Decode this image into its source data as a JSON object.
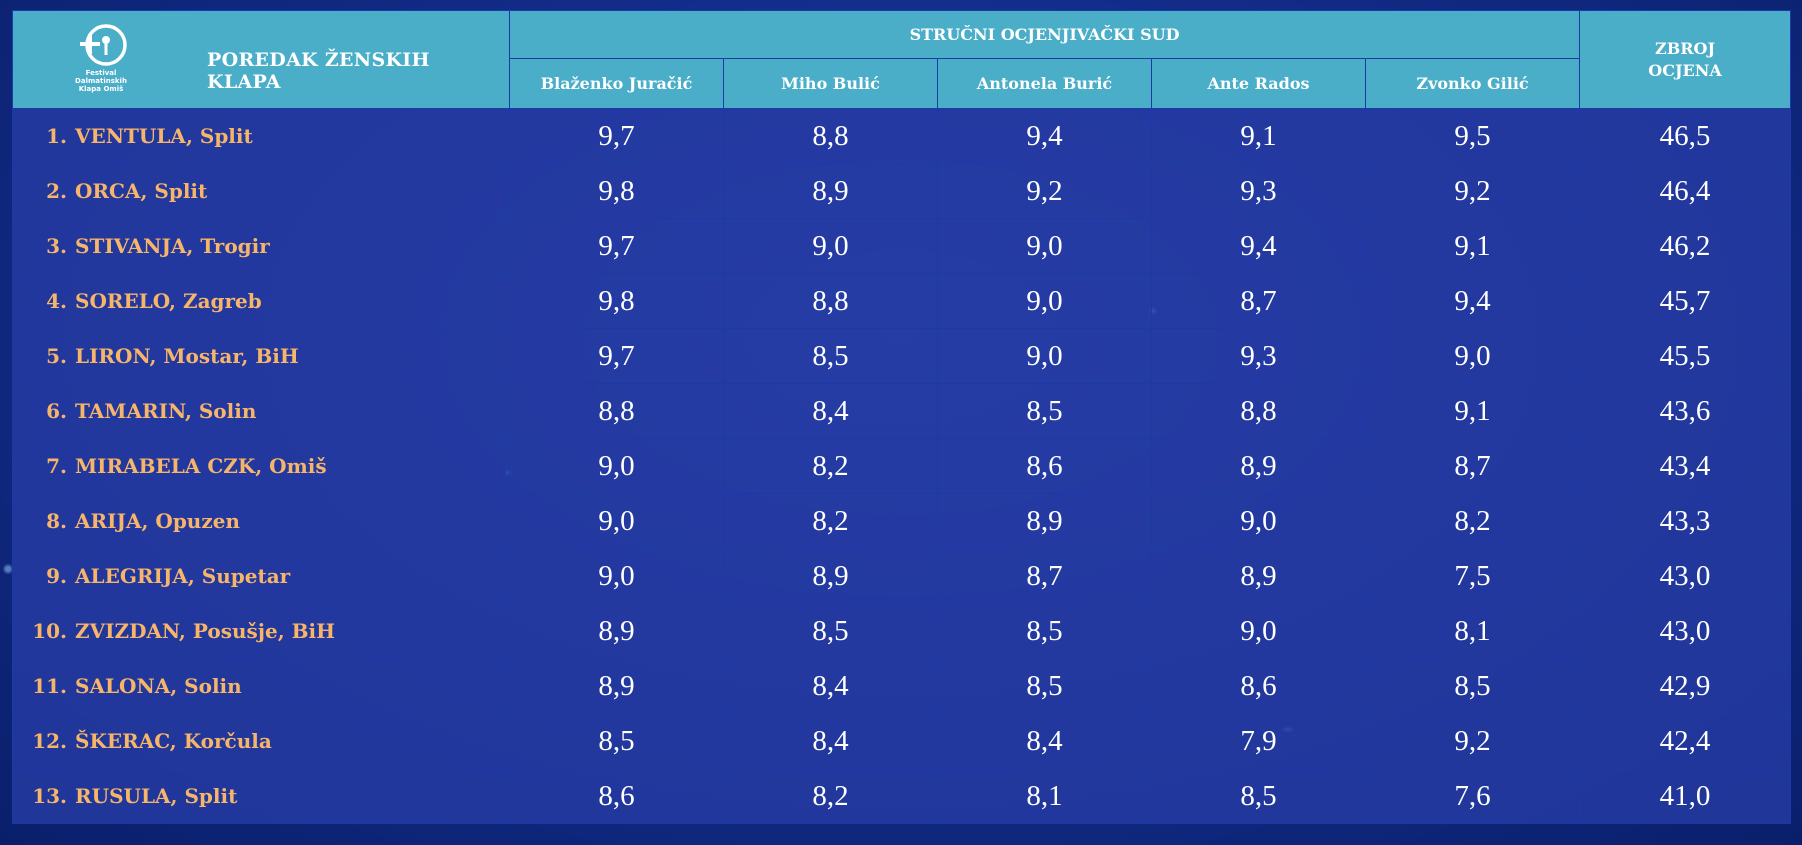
{
  "header": {
    "title": "POREDAK ŽENSKIH KLAPA",
    "jury_label": "STRUČNI OCJENJIVAČKI SUD",
    "total_label_line1": "ZBROJ",
    "total_label_line2": "OCJENA",
    "logo_text_line1": "Festival",
    "logo_text_line2": "Dalmatinskih",
    "logo_text_line3": "Klapa Omiš",
    "judges": [
      "Blaženko Juračić",
      "Miho Bulić",
      "Antonela Burić",
      "Ante Rados",
      "Zvonko Gilić"
    ]
  },
  "colors": {
    "header_bg": "#4aaec9",
    "team_text": "#f7b56a",
    "row_bg": "#2b3fa8",
    "page_bg": "#132e8c"
  },
  "rows": [
    {
      "rank": "1.",
      "team": "VENTULA, Split",
      "scores": [
        "9,7",
        "8,8",
        "9,4",
        "9,1",
        "9,5"
      ],
      "total": "46,5"
    },
    {
      "rank": "2.",
      "team": "ORCA, Split",
      "scores": [
        "9,8",
        "8,9",
        "9,2",
        "9,3",
        "9,2"
      ],
      "total": "46,4"
    },
    {
      "rank": "3.",
      "team": "STIVANJA, Trogir",
      "scores": [
        "9,7",
        "9,0",
        "9,0",
        "9,4",
        "9,1"
      ],
      "total": "46,2"
    },
    {
      "rank": "4.",
      "team": "SORELO, Zagreb",
      "scores": [
        "9,8",
        "8,8",
        "9,0",
        "8,7",
        "9,4"
      ],
      "total": "45,7"
    },
    {
      "rank": "5.",
      "team": "LIRON, Mostar, BiH",
      "scores": [
        "9,7",
        "8,5",
        "9,0",
        "9,3",
        "9,0"
      ],
      "total": "45,5"
    },
    {
      "rank": "6.",
      "team": "TAMARIN, Solin",
      "scores": [
        "8,8",
        "8,4",
        "8,5",
        "8,8",
        "9,1"
      ],
      "total": "43,6"
    },
    {
      "rank": "7.",
      "team": "MIRABELA CZK, Omiš",
      "scores": [
        "9,0",
        "8,2",
        "8,6",
        "8,9",
        "8,7"
      ],
      "total": "43,4"
    },
    {
      "rank": "8.",
      "team": "ARIJA, Opuzen",
      "scores": [
        "9,0",
        "8,2",
        "8,9",
        "9,0",
        "8,2"
      ],
      "total": "43,3"
    },
    {
      "rank": "9.",
      "team": "ALEGRIJA, Supetar",
      "scores": [
        "9,0",
        "8,9",
        "8,7",
        "8,9",
        "7,5"
      ],
      "total": "43,0"
    },
    {
      "rank": "10.",
      "team": "ZVIZDAN, Posušje, BiH",
      "scores": [
        "8,9",
        "8,5",
        "8,5",
        "9,0",
        "8,1"
      ],
      "total": "43,0"
    },
    {
      "rank": "11.",
      "team": "SALONA, Solin",
      "scores": [
        "8,9",
        "8,4",
        "8,5",
        "8,6",
        "8,5"
      ],
      "total": "42,9"
    },
    {
      "rank": "12.",
      "team": "ŠKERAC, Korčula",
      "scores": [
        "8,5",
        "8,4",
        "8,4",
        "7,9",
        "9,2"
      ],
      "total": "42,4"
    },
    {
      "rank": "13.",
      "team": "RUSULA, Split",
      "scores": [
        "8,6",
        "8,2",
        "8,1",
        "8,5",
        "7,6"
      ],
      "total": "41,0"
    }
  ]
}
